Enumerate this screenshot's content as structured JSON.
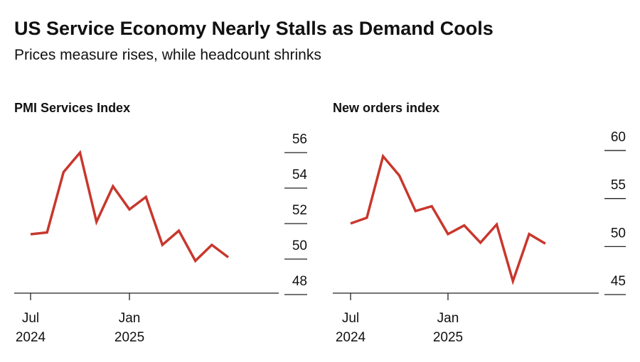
{
  "title": "US Service Economy Nearly Stalls as Demand Cools",
  "subtitle": "Prices measure rises, while headcount shrinks",
  "chart_data": [
    {
      "type": "line",
      "title": "PMI Services Index",
      "x": [
        "2024-07",
        "2024-08",
        "2024-09",
        "2024-10",
        "2024-11",
        "2024-12",
        "2025-01",
        "2025-02",
        "2025-03",
        "2025-04",
        "2025-05",
        "2025-06",
        "2025-07"
      ],
      "series": [
        {
          "color": "#c8372d",
          "values": [
            51.4,
            51.5,
            54.9,
            56.0,
            52.1,
            54.1,
            52.8,
            53.5,
            50.8,
            51.6,
            49.9,
            50.8,
            50.1
          ]
        }
      ],
      "ylim": [
        48,
        57.2
      ],
      "yticks": [
        48,
        50,
        52,
        54,
        56
      ],
      "xticks": [
        {
          "value": "2024-07",
          "label": "Jul 2024"
        },
        {
          "value": "2025-01",
          "label": "Jan 2025"
        }
      ]
    },
    {
      "type": "line",
      "title": "New orders index",
      "x": [
        "2024-07",
        "2024-08",
        "2024-09",
        "2024-10",
        "2024-11",
        "2024-12",
        "2025-01",
        "2025-02",
        "2025-03",
        "2025-04",
        "2025-05",
        "2025-06",
        "2025-07"
      ],
      "series": [
        {
          "color": "#c8372d",
          "values": [
            52.4,
            53.0,
            59.4,
            57.4,
            53.7,
            54.2,
            51.3,
            52.2,
            50.4,
            52.3,
            46.4,
            51.3,
            50.3
          ]
        }
      ],
      "ylim": [
        45,
        62
      ],
      "yticks": [
        45,
        50,
        55,
        60
      ],
      "xticks": [
        {
          "value": "2024-07",
          "label": "Jul 2024"
        },
        {
          "value": "2025-01",
          "label": "Jan 2025"
        }
      ]
    }
  ]
}
